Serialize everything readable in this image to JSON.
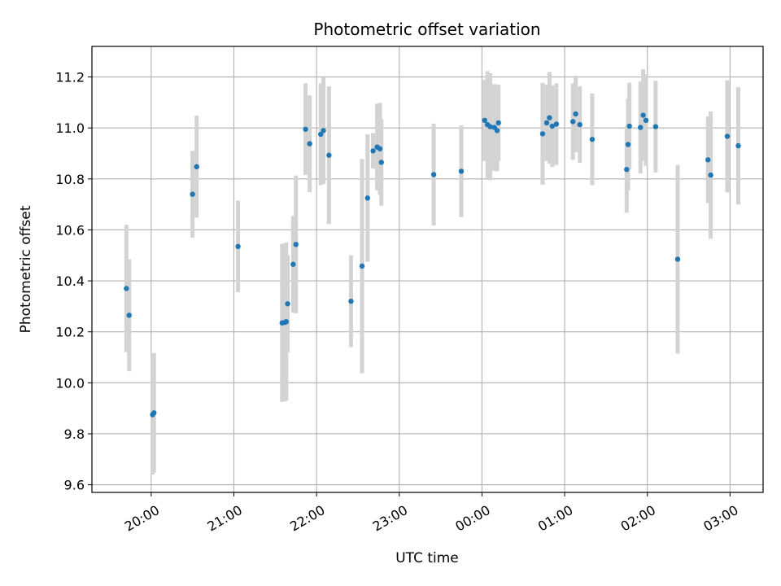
{
  "chart_data": {
    "type": "scatter",
    "title": "Photometric offset variation",
    "xlabel": "UTC time",
    "ylabel": "Photometric offset",
    "ylim": [
      9.57,
      11.32
    ],
    "xlim": [
      "19:17",
      "03:24"
    ],
    "grid": true,
    "x_tick_labels": [
      "20:00",
      "21:00",
      "22:00",
      "23:00",
      "00:00",
      "01:00",
      "02:00",
      "03:00"
    ],
    "x_tick_times": [
      "20:00",
      "21:00",
      "22:00",
      "23:00",
      "00:00",
      "01:00",
      "02:00",
      "03:00"
    ],
    "y_ticks": [
      9.6,
      9.8,
      10.0,
      10.2,
      10.4,
      10.6,
      10.8,
      11.0,
      11.2
    ],
    "y_tick_labels": [
      "9.6",
      "9.8",
      "10.0",
      "10.2",
      "10.4",
      "10.6",
      "10.8",
      "11.0",
      "11.2"
    ],
    "colors": {
      "marker": "#1f77b4",
      "errorbar": "#d3d3d3",
      "grid": "#b0b0b0"
    },
    "series": [
      {
        "x": [
          "19:42",
          "19:44",
          "20:01",
          "20:02",
          "20:30",
          "20:33",
          "21:03",
          "21:35",
          "21:37",
          "21:38",
          "21:39",
          "21:43",
          "21:45",
          "21:52",
          "21:55",
          "22:03",
          "22:05",
          "22:09",
          "22:25",
          "22:33",
          "22:37",
          "22:41",
          "22:44",
          "22:46",
          "22:47",
          "23:25",
          "23:45",
          "00:02",
          "00:04",
          "00:06",
          "00:09",
          "00:11",
          "00:12",
          "00:44",
          "00:47",
          "00:49",
          "00:51",
          "00:54",
          "01:06",
          "01:08",
          "01:11",
          "01:20",
          "01:45",
          "01:46",
          "01:47",
          "01:55",
          "01:57",
          "01:59",
          "02:06",
          "02:22",
          "02:44",
          "02:46",
          "02:58",
          "03:06"
        ],
        "y": [
          10.37,
          10.265,
          9.875,
          9.882,
          10.74,
          10.848,
          10.535,
          10.235,
          10.237,
          10.24,
          10.31,
          10.465,
          10.543,
          10.995,
          10.938,
          10.975,
          10.99,
          10.893,
          10.32,
          10.458,
          10.725,
          10.91,
          10.925,
          10.918,
          10.865,
          10.817,
          10.83,
          11.03,
          11.013,
          11.005,
          11.002,
          10.99,
          11.02,
          10.977,
          11.02,
          11.04,
          11.007,
          11.015,
          11.025,
          11.055,
          11.013,
          10.955,
          10.837,
          10.935,
          11.007,
          11.002,
          11.05,
          11.03,
          11.005,
          10.485,
          10.875,
          10.815,
          10.967,
          10.93
        ],
        "yerr": [
          0.25,
          0.22,
          0.235,
          0.235,
          0.17,
          0.2,
          0.18,
          0.31,
          0.31,
          0.31,
          0.19,
          0.19,
          0.27,
          0.18,
          0.19,
          0.2,
          0.21,
          0.27,
          0.18,
          0.42,
          0.25,
          0.07,
          0.17,
          0.18,
          0.17,
          0.2,
          0.18,
          0.16,
          0.21,
          0.21,
          0.17,
          0.16,
          0.15,
          0.2,
          0.15,
          0.18,
          0.16,
          0.16,
          0.15,
          0.15,
          0.15,
          0.18,
          0.17,
          0.18,
          0.17,
          0.18,
          0.18,
          0.18,
          0.18,
          0.37,
          0.17,
          0.25,
          0.22,
          0.23
        ]
      }
    ]
  }
}
